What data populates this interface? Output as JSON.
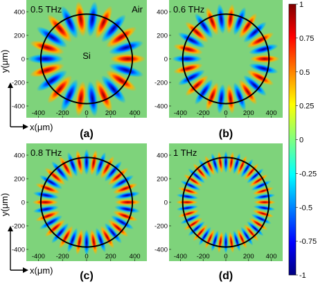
{
  "chart_data": [
    {
      "type": "heatmap",
      "panel_label": "(a)",
      "frequency_label": "0.5 THz",
      "outer_medium_label": "Air",
      "inner_medium_label": "Si",
      "xlabel": "x(μm)",
      "ylabel": "y(μm)",
      "xticks": [
        -400,
        -200,
        0,
        200,
        400
      ],
      "yticks": [
        -400,
        -200,
        0,
        200,
        400
      ],
      "xlim": [
        -500,
        500
      ],
      "ylim": [
        -500,
        500
      ],
      "disk_radius_um": 380,
      "azimuthal_lobes": 22
    },
    {
      "type": "heatmap",
      "panel_label": "(b)",
      "frequency_label": "0.6 THz",
      "xlabel": "x(μm)",
      "ylabel": "y(μm)",
      "xticks": [
        -400,
        -200,
        0,
        200,
        400
      ],
      "yticks": [
        -400,
        -200,
        0,
        200,
        400
      ],
      "xlim": [
        -500,
        500
      ],
      "ylim": [
        -500,
        500
      ],
      "disk_radius_um": 380,
      "azimuthal_lobes": 26
    },
    {
      "type": "heatmap",
      "panel_label": "(c)",
      "frequency_label": "0.8 THz",
      "xlabel": "x(μm)",
      "ylabel": "y(μm)",
      "xticks": [
        -400,
        -200,
        0,
        200,
        400
      ],
      "yticks": [
        -400,
        -200,
        0,
        200,
        400
      ],
      "xlim": [
        -500,
        500
      ],
      "ylim": [
        -500,
        500
      ],
      "disk_radius_um": 380,
      "azimuthal_lobes": 36
    },
    {
      "type": "heatmap",
      "panel_label": "(d)",
      "frequency_label": "1 THz",
      "xlabel": "x(μm)",
      "ylabel": "y(μm)",
      "xticks": [
        -400,
        -200,
        0,
        200,
        400
      ],
      "yticks": [
        -400,
        -200,
        0,
        200,
        400
      ],
      "xlim": [
        -500,
        500
      ],
      "ylim": [
        -500,
        500
      ],
      "disk_radius_um": 380,
      "azimuthal_lobes": 44
    }
  ],
  "colorbar": {
    "range": [
      -1,
      1
    ],
    "tick_labels": [
      "1",
      "0.75",
      "0.5",
      "0.25",
      "0",
      "-0.25",
      "-0.5",
      "-0.75",
      "-1"
    ],
    "colormap": "jet"
  },
  "colors": {
    "background_field": "#7ed37b",
    "disk_outline": "#000000"
  }
}
